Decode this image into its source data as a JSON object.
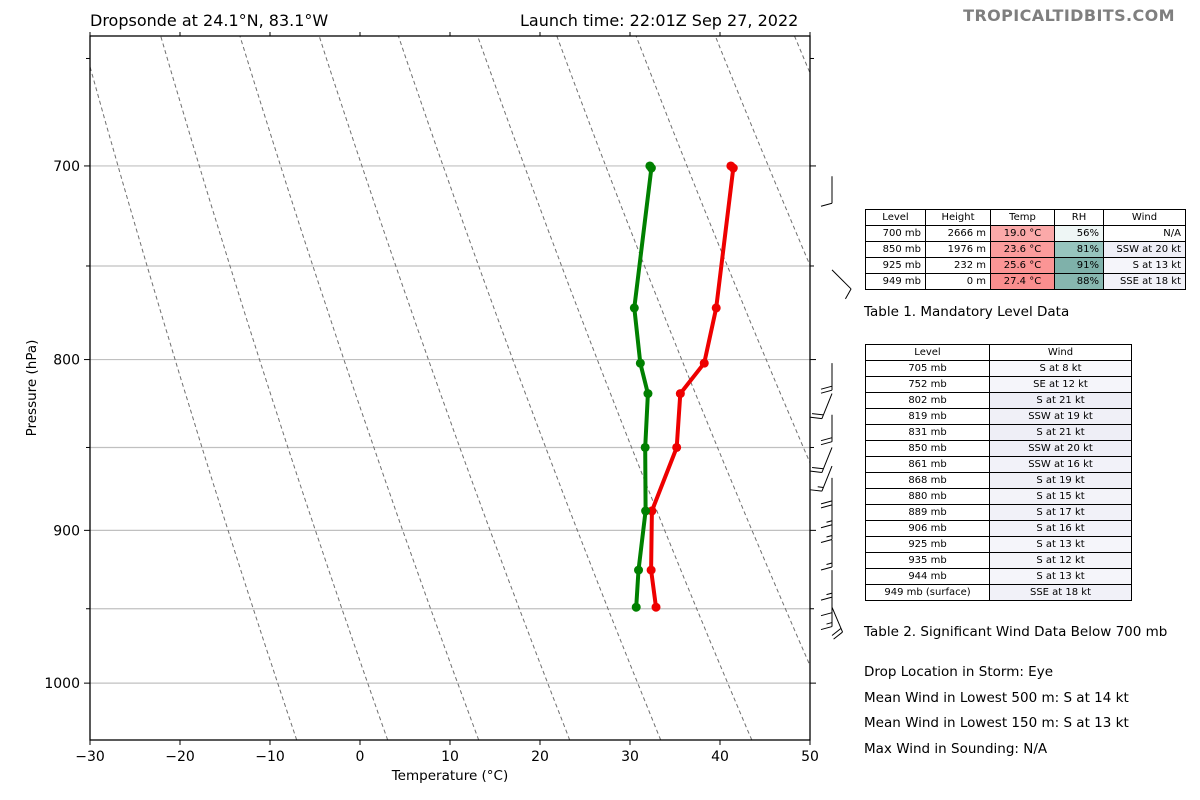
{
  "header": {
    "left_title": "Dropsonde at 24.1°N, 83.1°W",
    "right_title": "Launch time: 22:01Z Sep 27, 2022",
    "brand": "TROPICALTIDBITS.COM"
  },
  "chart_data": {
    "type": "line",
    "xlabel": "Temperature (°C)",
    "ylabel": "Pressure (hPa)",
    "xlim": [
      -30,
      50
    ],
    "ylim": [
      1040,
      640
    ],
    "y_scale": "log",
    "x_ticks": [
      "−30",
      "−20",
      "−10",
      "0",
      "10",
      "20",
      "30",
      "40",
      "50"
    ],
    "y_ticks": [
      "700",
      "800",
      "900",
      "1000"
    ],
    "grid_pressures": [
      700,
      750,
      800,
      850,
      900,
      950,
      1000
    ],
    "skew": true,
    "dry_adiabats": true,
    "series": [
      {
        "color": "#ee0000",
        "points": [
          {
            "p": 700,
            "t": 32.6
          },
          {
            "p": 701,
            "t": 32.9
          },
          {
            "p": 772,
            "t": 33.1
          },
          {
            "p": 802,
            "t": 32.6
          },
          {
            "p": 819,
            "t": 30.4
          },
          {
            "p": 850,
            "t": 30.8
          },
          {
            "p": 888,
            "t": 29.0
          },
          {
            "p": 925,
            "t": 29.8
          },
          {
            "p": 949,
            "t": 30.9
          }
        ]
      },
      {
        "color": "#008000",
        "points": [
          {
            "p": 700,
            "t": 23.6
          },
          {
            "p": 701,
            "t": 23.8
          },
          {
            "p": 772,
            "t": 24.0
          },
          {
            "p": 802,
            "t": 25.5
          },
          {
            "p": 819,
            "t": 26.8
          },
          {
            "p": 850,
            "t": 27.3
          },
          {
            "p": 888,
            "t": 28.3
          },
          {
            "p": 925,
            "t": 28.4
          },
          {
            "p": 949,
            "t": 28.7
          }
        ]
      }
    ],
    "wind_barbs": [
      {
        "p": 705,
        "dir": 180,
        "kt": 8
      },
      {
        "p": 752,
        "dir": 135,
        "kt": 12
      },
      {
        "p": 802,
        "dir": 180,
        "kt": 21
      },
      {
        "p": 819,
        "dir": 202,
        "kt": 19
      },
      {
        "p": 831,
        "dir": 180,
        "kt": 21
      },
      {
        "p": 850,
        "dir": 202,
        "kt": 20
      },
      {
        "p": 861,
        "dir": 202,
        "kt": 16
      },
      {
        "p": 868,
        "dir": 180,
        "kt": 19
      },
      {
        "p": 880,
        "dir": 180,
        "kt": 15
      },
      {
        "p": 889,
        "dir": 180,
        "kt": 17
      },
      {
        "p": 906,
        "dir": 180,
        "kt": 16
      },
      {
        "p": 925,
        "dir": 180,
        "kt": 13
      },
      {
        "p": 935,
        "dir": 180,
        "kt": 12
      },
      {
        "p": 944,
        "dir": 180,
        "kt": 13
      },
      {
        "p": 949,
        "dir": 157,
        "kt": 18
      }
    ]
  },
  "table1": {
    "headers": [
      "Level",
      "Height",
      "Temp",
      "RH",
      "Wind"
    ],
    "rows": [
      {
        "level": "700 mb",
        "height": "2666 m",
        "temp": "19.0 °C",
        "rh": "56%",
        "wind": "N/A",
        "temp_color": "#fba9a9",
        "rh_color": "#eef6f5",
        "wind_color": "#ffffff"
      },
      {
        "level": "850 mb",
        "height": "1976 m",
        "temp": "23.6 °C",
        "rh": "81%",
        "wind": "SSW at 20 kt",
        "temp_color": "#fb9c9c",
        "rh_color": "#97c5be",
        "wind_color": "#efeff7"
      },
      {
        "level": "925 mb",
        "height": "232 m",
        "temp": "25.6 °C",
        "rh": "91%",
        "wind": "S at 13 kt",
        "temp_color": "#fb9595",
        "rh_color": "#7fb1aa",
        "wind_color": "#f5f5fa"
      },
      {
        "level": "949 mb",
        "height": "0 m",
        "temp": "27.4 °C",
        "rh": "88%",
        "wind": "SSE at 18 kt",
        "temp_color": "#fa8e8e",
        "rh_color": "#87b7b0",
        "wind_color": "#f1f1f8"
      }
    ],
    "caption": "Table 1. Mandatory Level Data"
  },
  "table2": {
    "headers": [
      "Level",
      "Wind"
    ],
    "rows": [
      {
        "level": "705 mb",
        "wind": "S at 8 kt",
        "wind_color": "#f8f8fc"
      },
      {
        "level": "752 mb",
        "wind": "SE at 12 kt",
        "wind_color": "#f5f5fa"
      },
      {
        "level": "802 mb",
        "wind": "S at 21 kt",
        "wind_color": "#eeeef6"
      },
      {
        "level": "819 mb",
        "wind": "SSW at 19 kt",
        "wind_color": "#f0f0f7"
      },
      {
        "level": "831 mb",
        "wind": "S at 21 kt",
        "wind_color": "#eeeef6"
      },
      {
        "level": "850 mb",
        "wind": "SSW at 20 kt",
        "wind_color": "#efeff7"
      },
      {
        "level": "861 mb",
        "wind": "SSW at 16 kt",
        "wind_color": "#f2f2f9"
      },
      {
        "level": "868 mb",
        "wind": "S at 19 kt",
        "wind_color": "#f0f0f7"
      },
      {
        "level": "880 mb",
        "wind": "S at 15 kt",
        "wind_color": "#f3f3f9"
      },
      {
        "level": "889 mb",
        "wind": "S at 17 kt",
        "wind_color": "#f1f1f8"
      },
      {
        "level": "906 mb",
        "wind": "S at 16 kt",
        "wind_color": "#f2f2f9"
      },
      {
        "level": "925 mb",
        "wind": "S at 13 kt",
        "wind_color": "#f5f5fa"
      },
      {
        "level": "935 mb",
        "wind": "S at 12 kt",
        "wind_color": "#f5f5fa"
      },
      {
        "level": "944 mb",
        "wind": "S at 13 kt",
        "wind_color": "#f5f5fa"
      },
      {
        "level": "949 mb (surface)",
        "wind": "SSE at 18 kt",
        "wind_color": "#f1f1f8"
      }
    ],
    "caption": "Table 2. Significant Wind Data Below 700 mb"
  },
  "info": {
    "drop_location": "Drop Location in Storm: Eye",
    "mean_wind_500": "Mean Wind in Lowest 500 m:  S at 14 kt",
    "mean_wind_150": "Mean Wind in Lowest 150 m:  S at 13 kt",
    "max_wind": "Max Wind in Sounding:  N/A"
  }
}
